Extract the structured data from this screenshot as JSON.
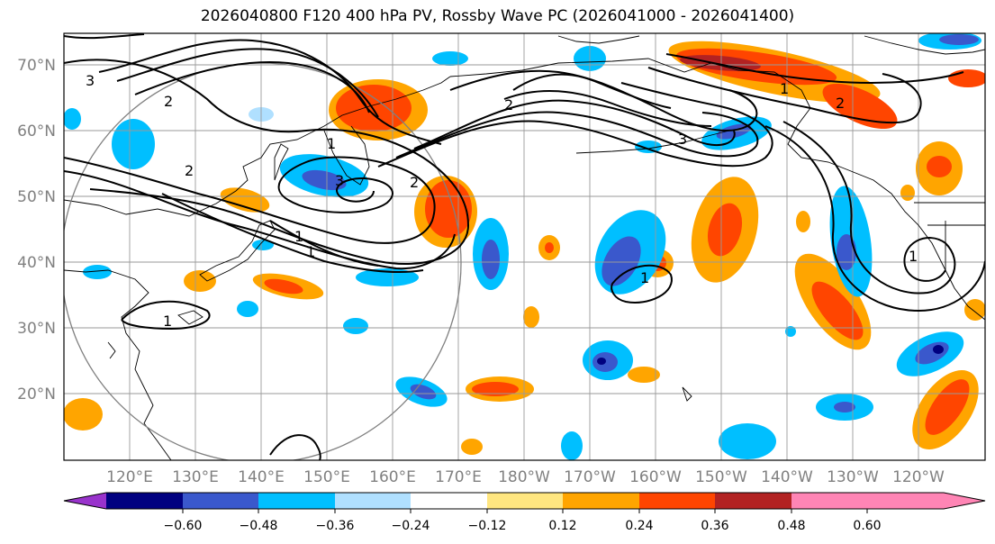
{
  "title": "2026040800 F120 400 hPa PV, Rossby Wave PC (2026041000 - 2026041400)",
  "map": {
    "lat_labels": [
      "70°N",
      "60°N",
      "50°N",
      "40°N",
      "30°N",
      "20°N"
    ],
    "lon_labels": [
      "120°E",
      "130°E",
      "140°E",
      "150°E",
      "160°E",
      "170°E",
      "180°W",
      "170°W",
      "160°W",
      "150°W",
      "140°W",
      "130°W",
      "120°W"
    ],
    "contour_labels": [
      "3",
      "2",
      "2",
      "1",
      "3",
      "2",
      "1",
      "1",
      "2",
      "3",
      "2",
      "1",
      "1",
      "1",
      "1"
    ]
  },
  "colorbar": {
    "colors": [
      "#9933cc",
      "#000080",
      "#3a58cc",
      "#00bfff",
      "#b0e0ff",
      "#ffffff",
      "#ffe680",
      "#ffa500",
      "#ff4500",
      "#b22222",
      "#ff85b5"
    ],
    "ticks": [
      "−0.60",
      "−0.48",
      "−0.36",
      "−0.24",
      "−0.12",
      "0.12",
      "0.24",
      "0.36",
      "0.48",
      "0.60"
    ]
  },
  "chart_data": {
    "type": "contour-map",
    "title": "2026040800 F120 400 hPa PV, Rossby Wave PC (2026041000 - 2026041400)",
    "lon_range": [
      110,
      250
    ],
    "lat_range": [
      10,
      75
    ],
    "shading_levels": [
      -0.6,
      -0.48,
      -0.36,
      -0.24,
      -0.12,
      0.12,
      0.24,
      0.36,
      0.48,
      0.6
    ],
    "contour_levels": [
      1,
      2,
      3
    ]
  }
}
